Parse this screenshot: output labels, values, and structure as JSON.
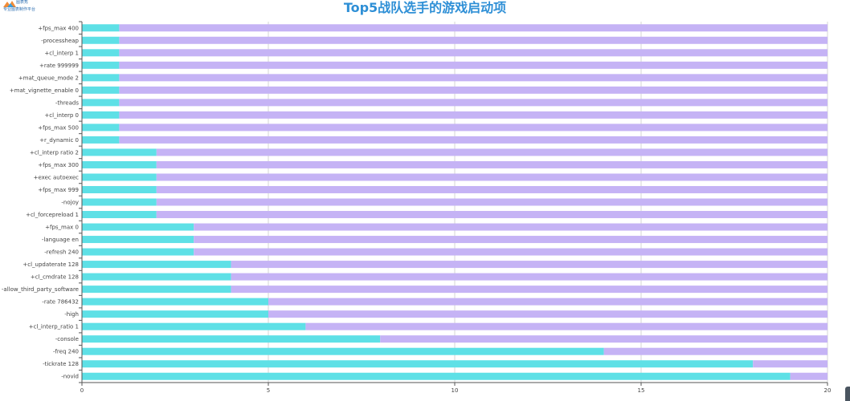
{
  "logo": {
    "name": "图表秀",
    "tagline": "专业图表制作平台"
  },
  "colors": {
    "series1": "#5ee0e6",
    "series2": "#c5b3f5",
    "title": "#2e8fd6"
  },
  "chart_data": {
    "type": "bar",
    "orientation": "horizontal",
    "stacked": true,
    "title": "Top5战队选手的游戏启动项",
    "categories": [
      "+fps_max 400",
      "-processheap",
      "+cl_interp 1",
      "+rate 999999",
      "+mat_queue_mode 2",
      "+mat_vignette_enable 0",
      "-threads",
      "+cl_interp 0",
      "+fps_max 500",
      "+r_dynamic 0",
      "+cl_interp ratio 2",
      "+fps_max 300",
      "+exec autoexec",
      "+fps_max 999",
      "-nojoy",
      "+cl_forcepreload 1",
      "+fps_max 0",
      "-language en",
      "-refresh 240",
      "+cl_updaterate 128",
      "+cl_cmdrate 128",
      "-allow_third_party_software",
      "-rate 786432",
      "-high",
      "+cl_interp_ratio 1",
      "-console",
      "-freq 240",
      "-tickrate 128",
      "-novid"
    ],
    "series": [
      {
        "values": [
          1,
          1,
          1,
          1,
          1,
          1,
          1,
          1,
          1,
          1,
          2,
          2,
          2,
          2,
          2,
          2,
          3,
          3,
          3,
          4,
          4,
          4,
          5,
          5,
          6,
          8,
          14,
          18,
          19
        ]
      },
      {
        "values": [
          19,
          19,
          19,
          19,
          19,
          19,
          19,
          19,
          19,
          19,
          18,
          18,
          18,
          18,
          18,
          18,
          17,
          17,
          17,
          16,
          16,
          16,
          15,
          15,
          14,
          12,
          6,
          2,
          1
        ]
      }
    ],
    "xlim": [
      0,
      20
    ],
    "xticks": [
      0,
      5,
      10,
      15,
      20
    ],
    "grid": true
  }
}
